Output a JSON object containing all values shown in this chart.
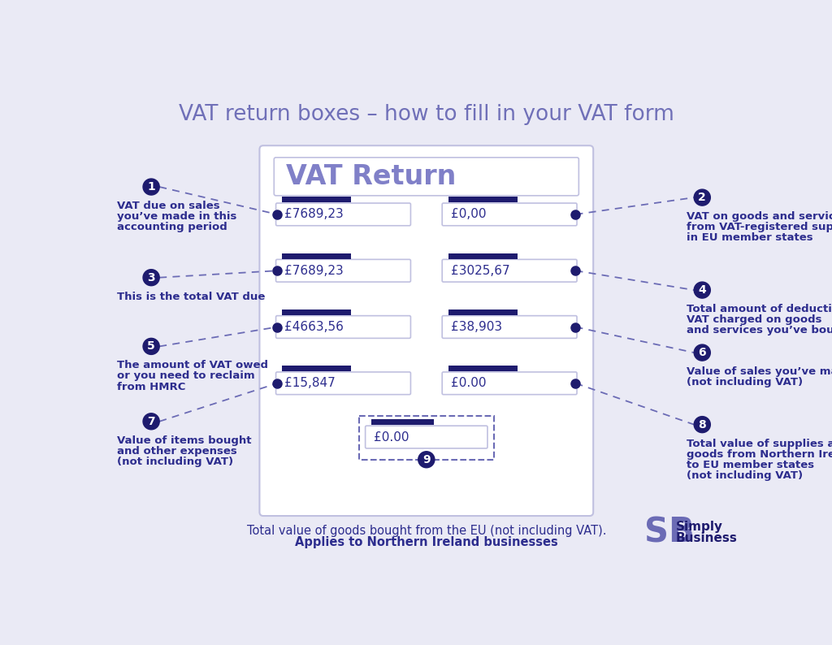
{
  "title": "VAT return boxes – how to fill in your VAT form",
  "bg_color": "#eaeaf5",
  "dark_blue": "#1e1b6e",
  "medium_blue": "#6b6bb5",
  "label_color": "#2d2d8e",
  "boxes": [
    {
      "label": "£7689,23"
    },
    {
      "label": "£0,00"
    },
    {
      "label": "£7689,23"
    },
    {
      "label": "£3025,67"
    },
    {
      "label": "£4663,56"
    },
    {
      "label": "£38,903"
    },
    {
      "label": "£15,847"
    },
    {
      "label": "£0.00"
    },
    {
      "label": "£0.00"
    }
  ],
  "left_annotations": [
    {
      "num": "1",
      "lines": [
        "VAT due on sales",
        "you’ve made in this",
        "accounting period"
      ]
    },
    {
      "num": "3",
      "lines": [
        "This is the total VAT due"
      ]
    },
    {
      "num": "5",
      "lines": [
        "The amount of VAT owed",
        "or you need to reclaim",
        "from HMRC"
      ]
    },
    {
      "num": "7",
      "lines": [
        "Value of items bought",
        "and other expenses",
        "(not including VAT)"
      ]
    }
  ],
  "right_annotations": [
    {
      "num": "2",
      "lines": [
        "VAT on goods and services",
        "from VAT-registered suppliers",
        "in EU member states"
      ]
    },
    {
      "num": "4",
      "lines": [
        "Total amount of deductible",
        "VAT charged on goods",
        "and services you’ve bought"
      ]
    },
    {
      "num": "6",
      "lines": [
        "Value of sales you’ve made",
        "(not including VAT)"
      ]
    },
    {
      "num": "8",
      "lines": [
        "Total value of supplies and",
        "goods from Northern Ireland",
        "to EU member states",
        "(not including VAT)"
      ]
    }
  ],
  "bottom_note_line1": "Total value of goods bought from the EU (not including VAT).",
  "bottom_note_line2": "Applies to Northern Ireland businesses"
}
